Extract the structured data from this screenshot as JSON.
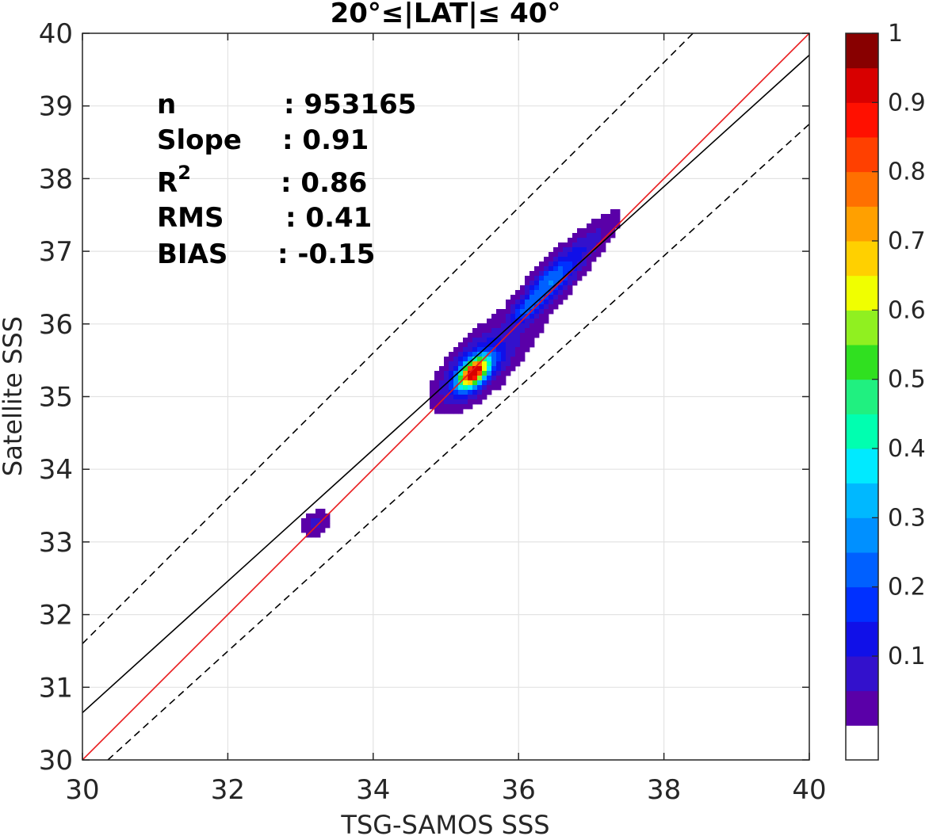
{
  "chart_data": {
    "type": "contour",
    "title": "20°≤|LAT|≤ 40°",
    "xlabel": "TSG-SAMOS SSS",
    "ylabel": "Satellite SSS",
    "xlim": [
      30,
      40
    ],
    "ylim": [
      30,
      40
    ],
    "xticks": [
      30,
      32,
      34,
      36,
      38,
      40
    ],
    "yticks": [
      30,
      31,
      32,
      33,
      34,
      35,
      36,
      37,
      38,
      39,
      40
    ],
    "grid": true,
    "stats": [
      {
        "label": "n",
        "sep": ":",
        "value": "953165"
      },
      {
        "label": "Slope",
        "sep": ":",
        "value": "0.91"
      },
      {
        "label": "R",
        "sup": "2",
        "sep": ":",
        "value": "0.86"
      },
      {
        "label": "RMS",
        "sep": ":",
        "value": "0.41"
      },
      {
        "label": "BIAS",
        "sep": ":",
        "value": "-0.15"
      }
    ],
    "lines": [
      {
        "role": "one-to-one",
        "color": "#e8191b",
        "style": "solid",
        "points": [
          [
            30,
            30
          ],
          [
            40,
            40
          ]
        ]
      },
      {
        "role": "regression-fit",
        "color": "#000000",
        "style": "solid",
        "points": [
          [
            30,
            30.65
          ],
          [
            40,
            39.7
          ]
        ]
      },
      {
        "role": "upper-bound",
        "color": "#000000",
        "style": "dashed",
        "points": [
          [
            30,
            31.6
          ],
          [
            40,
            41.6
          ]
        ]
      },
      {
        "role": "lower-bound",
        "color": "#000000",
        "style": "dashed",
        "points": [
          [
            30.35,
            30
          ],
          [
            40,
            38.75
          ]
        ]
      }
    ],
    "contour_levels": [
      0.05,
      0.1,
      0.15,
      0.2,
      0.25,
      0.3,
      0.35,
      0.4,
      0.45,
      0.5,
      0.55,
      0.6,
      0.65,
      0.7,
      0.75,
      0.8,
      0.85,
      0.9,
      0.95
    ],
    "density_peak": {
      "x": 35.38,
      "y": 35.33,
      "value": 1.0
    },
    "secondary_peak": {
      "x": 36.1,
      "y": 36.2
    },
    "minor_cluster": {
      "x": 33.2,
      "y": 33.25,
      "value": 0.1
    },
    "colorbar": {
      "ticks": [
        0.1,
        0.2,
        0.3,
        0.4,
        0.5,
        0.6,
        0.7,
        0.8,
        0.9,
        1
      ],
      "tick_labels": [
        "0.1",
        "0.2",
        "0.3",
        "0.4",
        "0.5",
        "0.6",
        "0.7",
        "0.8",
        "0.9",
        "1"
      ],
      "colors": [
        "#ffffff",
        "#5a00a8",
        "#3311cc",
        "#1010e8",
        "#0030ff",
        "#0060ff",
        "#0090ff",
        "#00b8ff",
        "#00eaff",
        "#00ffb0",
        "#20f080",
        "#30e020",
        "#90f020",
        "#f0ff00",
        "#ffd000",
        "#ffa000",
        "#ff7000",
        "#ff4000",
        "#ff1000",
        "#d80000",
        "#880000"
      ]
    }
  }
}
